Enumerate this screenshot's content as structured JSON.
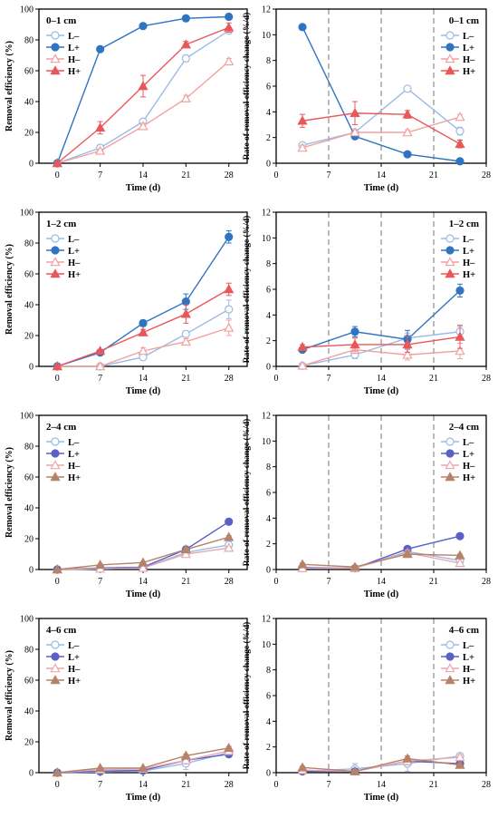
{
  "colors": {
    "L_minus": "#9bbbe3",
    "L_plus_top": "#2f74c2",
    "H_minus": "#f2a0a0",
    "H_plus_top": "#e8585a",
    "L_plus_bottom": "#5b5fc7",
    "H_plus_bottom": "#b5826a",
    "H_minus_bottom": "#e9a8b0"
  },
  "chart_data": [
    {
      "type": "line",
      "panel": "0–1 cm",
      "panel_label": "0–1 cm",
      "xlabel": "Time (d)",
      "ylabel": "Removal efficiency (%)",
      "xlim": [
        -3,
        31
      ],
      "ylim": [
        0,
        100
      ],
      "xticks": [
        0,
        7,
        14,
        21,
        28
      ],
      "yticks": [
        0,
        20,
        40,
        60,
        80,
        100
      ],
      "x": [
        0,
        7,
        14,
        21,
        28
      ],
      "series": [
        {
          "name": "L–",
          "values": [
            0,
            10,
            27,
            68,
            86
          ],
          "err": [
            1,
            2,
            2,
            2,
            2
          ]
        },
        {
          "name": "L+",
          "values": [
            0,
            74,
            89,
            94,
            95
          ],
          "err": [
            1,
            1,
            1,
            1,
            1
          ]
        },
        {
          "name": "H–",
          "values": [
            0,
            8,
            24,
            42,
            66
          ],
          "err": [
            1,
            1,
            2,
            2,
            2
          ]
        },
        {
          "name": "H+",
          "values": [
            0,
            23,
            50,
            77,
            88
          ],
          "err": [
            1,
            4,
            7,
            2,
            3
          ]
        }
      ]
    },
    {
      "type": "line",
      "panel": "0–1 cm",
      "panel_label": "0–1 cm",
      "xlabel": "Time (d)",
      "ylabel": "Rate of removal efficiency change (%/d)",
      "xlim": [
        0,
        28
      ],
      "ylim": [
        0,
        12
      ],
      "xticks": [
        0,
        7,
        14,
        21,
        28
      ],
      "yticks": [
        0,
        2,
        4,
        6,
        8,
        10,
        12
      ],
      "vlines": [
        7,
        14,
        21
      ],
      "x": [
        3.5,
        10.5,
        17.5,
        24.5
      ],
      "series": [
        {
          "name": "L–",
          "values": [
            1.4,
            2.4,
            5.8,
            2.5
          ],
          "err": [
            0.2,
            0.2,
            0.2,
            0.3
          ]
        },
        {
          "name": "L+",
          "values": [
            10.6,
            2.1,
            0.7,
            0.15
          ],
          "err": [
            0.2,
            0.2,
            0.1,
            0.1
          ]
        },
        {
          "name": "H–",
          "values": [
            1.2,
            2.4,
            2.4,
            3.6
          ],
          "err": [
            0.2,
            0.2,
            0.2,
            0.2
          ]
        },
        {
          "name": "H+",
          "values": [
            3.3,
            3.9,
            3.8,
            1.5
          ],
          "err": [
            0.5,
            0.9,
            0.3,
            0.3
          ]
        }
      ]
    },
    {
      "type": "line",
      "panel": "1–2 cm",
      "panel_label": "1–2 cm",
      "xlabel": "Time (d)",
      "ylabel": "Removal efficiency (%)",
      "xlim": [
        -3,
        31
      ],
      "ylim": [
        0,
        100
      ],
      "xticks": [
        0,
        7,
        14,
        21,
        28
      ],
      "yticks": [
        0,
        20,
        40,
        60,
        80,
        100
      ],
      "x": [
        0,
        7,
        14,
        21,
        28
      ],
      "series": [
        {
          "name": "L–",
          "values": [
            0,
            0,
            6,
            21,
            37
          ],
          "err": [
            1,
            1,
            2,
            2,
            6
          ]
        },
        {
          "name": "L+",
          "values": [
            0,
            9,
            28,
            42,
            84
          ],
          "err": [
            1,
            1,
            2,
            5,
            4
          ]
        },
        {
          "name": "H–",
          "values": [
            0,
            0,
            10,
            16,
            25
          ],
          "err": [
            1,
            1,
            2,
            2,
            5
          ]
        },
        {
          "name": "H+",
          "values": [
            0,
            10,
            22,
            34,
            50
          ],
          "err": [
            1,
            1,
            2,
            6,
            4
          ]
        }
      ]
    },
    {
      "type": "line",
      "panel": "1–2 cm",
      "panel_label": "1–2 cm",
      "xlabel": "Time (d)",
      "ylabel": "Rate of removal efficiency change (%/d)",
      "xlim": [
        0,
        28
      ],
      "ylim": [
        0,
        12
      ],
      "xticks": [
        0,
        7,
        14,
        21,
        28
      ],
      "yticks": [
        0,
        2,
        4,
        6,
        8,
        10,
        12
      ],
      "vlines": [
        7,
        14,
        21
      ],
      "x": [
        3.5,
        10.5,
        17.5,
        24.5
      ],
      "series": [
        {
          "name": "L–",
          "values": [
            0.05,
            0.9,
            2.2,
            2.7
          ],
          "err": [
            0.1,
            0.3,
            0.4,
            0.4
          ]
        },
        {
          "name": "L+",
          "values": [
            1.3,
            2.7,
            2.1,
            5.9
          ],
          "err": [
            0.2,
            0.4,
            0.7,
            0.5
          ]
        },
        {
          "name": "H–",
          "values": [
            0.05,
            1.3,
            0.9,
            1.2
          ],
          "err": [
            0.1,
            0.3,
            0.4,
            0.6
          ]
        },
        {
          "name": "H+",
          "values": [
            1.5,
            1.7,
            1.7,
            2.3
          ],
          "err": [
            0.2,
            0.5,
            0.6,
            0.9
          ]
        }
      ]
    },
    {
      "type": "line",
      "panel": "2–4 cm",
      "panel_label": "2–4 cm",
      "xlabel": "Time (d)",
      "ylabel": "Removal efficiency (%)",
      "xlim": [
        -3,
        31
      ],
      "ylim": [
        0,
        100
      ],
      "xticks": [
        0,
        7,
        14,
        21,
        28
      ],
      "yticks": [
        0,
        20,
        40,
        60,
        80,
        100
      ],
      "x": [
        0,
        7,
        14,
        21,
        28
      ],
      "series": [
        {
          "name": "L–",
          "values": [
            0,
            0.5,
            1,
            11,
            16
          ],
          "err": [
            0.5,
            0.5,
            0.5,
            1,
            2
          ]
        },
        {
          "name": "L+",
          "values": [
            0,
            1,
            1.5,
            13,
            31
          ],
          "err": [
            0.5,
            0.5,
            0.5,
            1,
            1
          ]
        },
        {
          "name": "H–",
          "values": [
            0,
            0.5,
            1,
            10,
            14
          ],
          "err": [
            0.5,
            0.5,
            0.5,
            1,
            1
          ]
        },
        {
          "name": "H+",
          "values": [
            0,
            3,
            4.5,
            13,
            21
          ],
          "err": [
            0.5,
            0.5,
            0.5,
            1,
            1
          ]
        }
      ]
    },
    {
      "type": "line",
      "panel": "2–4 cm",
      "panel_label": "2–4 cm",
      "xlabel": "Time (d)",
      "ylabel": "Rate of removal efficiency change (%/d)",
      "xlim": [
        0,
        28
      ],
      "ylim": [
        0,
        12
      ],
      "xticks": [
        0,
        7,
        14,
        21,
        28
      ],
      "yticks": [
        0,
        2,
        4,
        6,
        8,
        10,
        12
      ],
      "vlines": [
        7,
        14,
        21
      ],
      "x": [
        3.5,
        10.5,
        17.5,
        24.5
      ],
      "series": [
        {
          "name": "L–",
          "values": [
            0.1,
            0.1,
            1.4,
            0.7
          ],
          "err": [
            0.1,
            0.1,
            0.2,
            0.2
          ]
        },
        {
          "name": "L+",
          "values": [
            0.15,
            0.1,
            1.6,
            2.6
          ],
          "err": [
            0.1,
            0.1,
            0.2,
            0.1
          ]
        },
        {
          "name": "H–",
          "values": [
            0.1,
            0.1,
            1.3,
            0.5
          ],
          "err": [
            0.1,
            0.1,
            0.2,
            0.1
          ]
        },
        {
          "name": "H+",
          "values": [
            0.4,
            0.2,
            1.2,
            1.1
          ],
          "err": [
            0.1,
            0.1,
            0.2,
            0.1
          ]
        }
      ]
    },
    {
      "type": "line",
      "panel": "4–6 cm",
      "panel_label": "4–6 cm",
      "xlabel": "Time (d)",
      "ylabel": "Removal efficiency (%)",
      "xlim": [
        -3,
        31
      ],
      "ylim": [
        0,
        100
      ],
      "xticks": [
        0,
        7,
        14,
        21,
        28
      ],
      "yticks": [
        0,
        20,
        40,
        60,
        80,
        100
      ],
      "x": [
        0,
        7,
        14,
        21,
        28
      ],
      "series": [
        {
          "name": "L–",
          "values": [
            0,
            0.5,
            1,
            6,
            13
          ],
          "err": [
            0.5,
            0.5,
            0.5,
            4,
            1
          ]
        },
        {
          "name": "L+",
          "values": [
            0,
            1,
            1.5,
            8,
            12
          ],
          "err": [
            0.5,
            0.5,
            0.5,
            1,
            1
          ]
        },
        {
          "name": "H–",
          "values": [
            0,
            2,
            2.5,
            8,
            14
          ],
          "err": [
            0.5,
            0.5,
            0.5,
            1,
            1
          ]
        },
        {
          "name": "H+",
          "values": [
            0,
            3,
            3,
            11,
            16
          ],
          "err": [
            0.5,
            0.5,
            0.5,
            1,
            1
          ]
        }
      ]
    },
    {
      "type": "line",
      "panel": "4–6 cm",
      "panel_label": "4–6 cm",
      "xlabel": "Time (d)",
      "ylabel": "Rate of removal efficiency change (%/d)",
      "xlim": [
        0,
        28
      ],
      "ylim": [
        0,
        12
      ],
      "xticks": [
        0,
        7,
        14,
        21,
        28
      ],
      "yticks": [
        0,
        2,
        4,
        6,
        8,
        10,
        12
      ],
      "vlines": [
        7,
        14,
        21
      ],
      "x": [
        3.5,
        10.5,
        17.5,
        24.5
      ],
      "series": [
        {
          "name": "L–",
          "values": [
            0.1,
            0.3,
            0.7,
            1.3
          ],
          "err": [
            0.1,
            0.4,
            0.6,
            0.2
          ]
        },
        {
          "name": "L+",
          "values": [
            0.1,
            0.1,
            0.9,
            0.7
          ],
          "err": [
            0.1,
            0.1,
            0.2,
            0.1
          ]
        },
        {
          "name": "H–",
          "values": [
            0.2,
            0.1,
            0.9,
            1.2
          ],
          "err": [
            0.1,
            0.1,
            0.3,
            0.2
          ]
        },
        {
          "name": "H+",
          "values": [
            0.4,
            0.1,
            1.1,
            0.6
          ],
          "err": [
            0.1,
            0.1,
            0.2,
            0.1
          ]
        }
      ]
    }
  ]
}
